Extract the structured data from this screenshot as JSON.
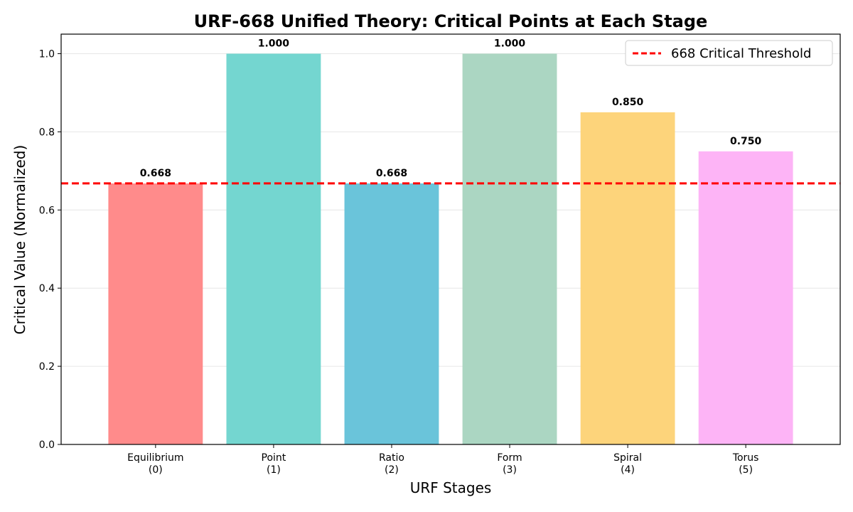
{
  "chart_data": {
    "type": "bar",
    "title": "URF-668 Unified Theory: Critical Points at Each Stage",
    "xlabel": "URF Stages",
    "ylabel": "Critical Value (Normalized)",
    "categories": [
      [
        "Equilibrium",
        "(0)"
      ],
      [
        "Point",
        "(1)"
      ],
      [
        "Ratio",
        "(2)"
      ],
      [
        "Form",
        "(3)"
      ],
      [
        "Spiral",
        "(4)"
      ],
      [
        "Torus",
        "(5)"
      ]
    ],
    "values": [
      0.668,
      1.0,
      0.668,
      1.0,
      0.85,
      0.75
    ],
    "value_labels": [
      "0.668",
      "1.000",
      "0.668",
      "1.000",
      "0.850",
      "0.750"
    ],
    "colors": [
      "#ff8b8b",
      "#74d6d0",
      "#6ac4da",
      "#abd6c2",
      "#fdd47b",
      "#fdb4f6"
    ],
    "ylim": [
      0,
      1.05
    ],
    "yticks": [
      0.0,
      0.2,
      0.4,
      0.6,
      0.8,
      1.0
    ],
    "ytick_labels": [
      "0.0",
      "0.2",
      "0.4",
      "0.6",
      "0.8",
      "1.0"
    ],
    "grid": "y",
    "threshold": {
      "value": 0.668,
      "label": "668 Critical Threshold",
      "color": "#ff0000"
    },
    "legend_position": "top-right"
  }
}
